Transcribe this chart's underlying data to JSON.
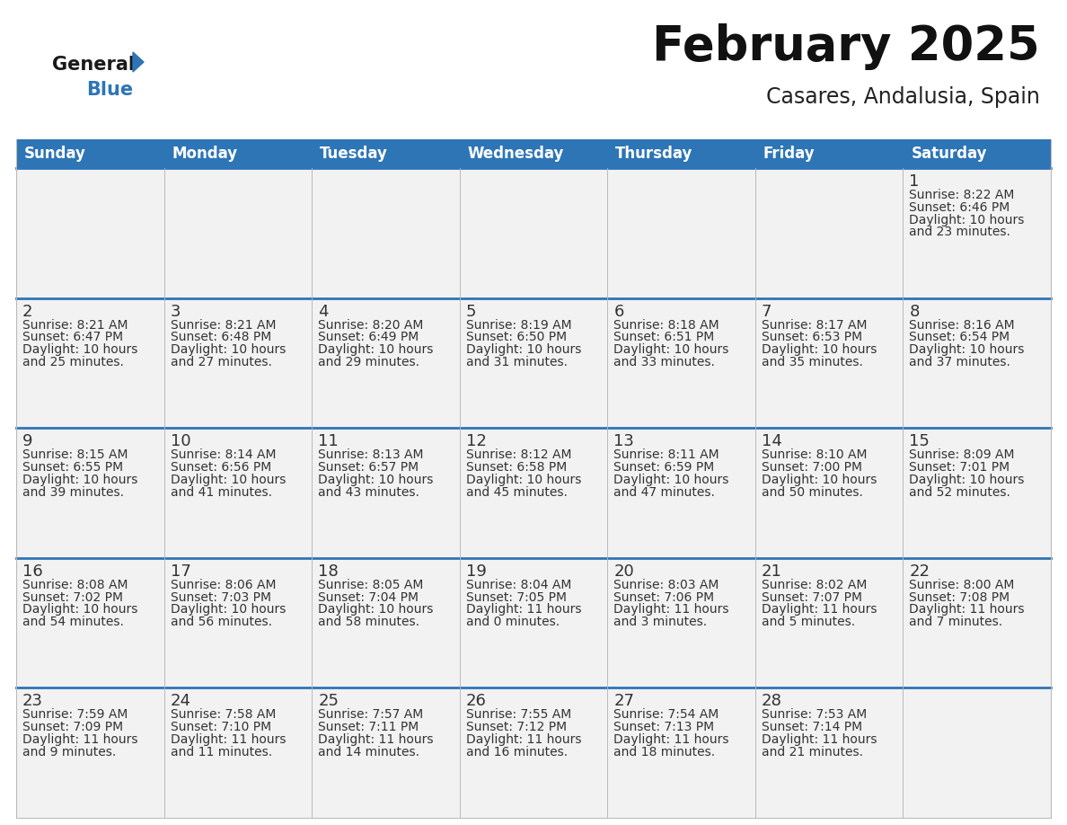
{
  "title": "February 2025",
  "subtitle": "Casares, Andalusia, Spain",
  "header_bg": "#2E75B6",
  "header_text_color": "#FFFFFF",
  "cell_bg_light": "#F2F2F2",
  "cell_bg_white": "#FFFFFF",
  "cell_border_color": "#BBBBBB",
  "day_number_color": "#333333",
  "cell_text_color": "#333333",
  "row_top_line_color": "#2E75B6",
  "days_of_week": [
    "Sunday",
    "Monday",
    "Tuesday",
    "Wednesday",
    "Thursday",
    "Friday",
    "Saturday"
  ],
  "logo_general_color": "#1A1A1A",
  "logo_blue_color": "#2E75B6",
  "calendar_data": [
    [
      null,
      null,
      null,
      null,
      null,
      null,
      {
        "day": 1,
        "sunrise": "8:22 AM",
        "sunset": "6:46 PM",
        "daylight": "10 hours and 23 minutes."
      }
    ],
    [
      {
        "day": 2,
        "sunrise": "8:21 AM",
        "sunset": "6:47 PM",
        "daylight": "10 hours and 25 minutes."
      },
      {
        "day": 3,
        "sunrise": "8:21 AM",
        "sunset": "6:48 PM",
        "daylight": "10 hours and 27 minutes."
      },
      {
        "day": 4,
        "sunrise": "8:20 AM",
        "sunset": "6:49 PM",
        "daylight": "10 hours and 29 minutes."
      },
      {
        "day": 5,
        "sunrise": "8:19 AM",
        "sunset": "6:50 PM",
        "daylight": "10 hours and 31 minutes."
      },
      {
        "day": 6,
        "sunrise": "8:18 AM",
        "sunset": "6:51 PM",
        "daylight": "10 hours and 33 minutes."
      },
      {
        "day": 7,
        "sunrise": "8:17 AM",
        "sunset": "6:53 PM",
        "daylight": "10 hours and 35 minutes."
      },
      {
        "day": 8,
        "sunrise": "8:16 AM",
        "sunset": "6:54 PM",
        "daylight": "10 hours and 37 minutes."
      }
    ],
    [
      {
        "day": 9,
        "sunrise": "8:15 AM",
        "sunset": "6:55 PM",
        "daylight": "10 hours and 39 minutes."
      },
      {
        "day": 10,
        "sunrise": "8:14 AM",
        "sunset": "6:56 PM",
        "daylight": "10 hours and 41 minutes."
      },
      {
        "day": 11,
        "sunrise": "8:13 AM",
        "sunset": "6:57 PM",
        "daylight": "10 hours and 43 minutes."
      },
      {
        "day": 12,
        "sunrise": "8:12 AM",
        "sunset": "6:58 PM",
        "daylight": "10 hours and 45 minutes."
      },
      {
        "day": 13,
        "sunrise": "8:11 AM",
        "sunset": "6:59 PM",
        "daylight": "10 hours and 47 minutes."
      },
      {
        "day": 14,
        "sunrise": "8:10 AM",
        "sunset": "7:00 PM",
        "daylight": "10 hours and 50 minutes."
      },
      {
        "day": 15,
        "sunrise": "8:09 AM",
        "sunset": "7:01 PM",
        "daylight": "10 hours and 52 minutes."
      }
    ],
    [
      {
        "day": 16,
        "sunrise": "8:08 AM",
        "sunset": "7:02 PM",
        "daylight": "10 hours and 54 minutes."
      },
      {
        "day": 17,
        "sunrise": "8:06 AM",
        "sunset": "7:03 PM",
        "daylight": "10 hours and 56 minutes."
      },
      {
        "day": 18,
        "sunrise": "8:05 AM",
        "sunset": "7:04 PM",
        "daylight": "10 hours and 58 minutes."
      },
      {
        "day": 19,
        "sunrise": "8:04 AM",
        "sunset": "7:05 PM",
        "daylight": "11 hours and 0 minutes."
      },
      {
        "day": 20,
        "sunrise": "8:03 AM",
        "sunset": "7:06 PM",
        "daylight": "11 hours and 3 minutes."
      },
      {
        "day": 21,
        "sunrise": "8:02 AM",
        "sunset": "7:07 PM",
        "daylight": "11 hours and 5 minutes."
      },
      {
        "day": 22,
        "sunrise": "8:00 AM",
        "sunset": "7:08 PM",
        "daylight": "11 hours and 7 minutes."
      }
    ],
    [
      {
        "day": 23,
        "sunrise": "7:59 AM",
        "sunset": "7:09 PM",
        "daylight": "11 hours and 9 minutes."
      },
      {
        "day": 24,
        "sunrise": "7:58 AM",
        "sunset": "7:10 PM",
        "daylight": "11 hours and 11 minutes."
      },
      {
        "day": 25,
        "sunrise": "7:57 AM",
        "sunset": "7:11 PM",
        "daylight": "11 hours and 14 minutes."
      },
      {
        "day": 26,
        "sunrise": "7:55 AM",
        "sunset": "7:12 PM",
        "daylight": "11 hours and 16 minutes."
      },
      {
        "day": 27,
        "sunrise": "7:54 AM",
        "sunset": "7:13 PM",
        "daylight": "11 hours and 18 minutes."
      },
      {
        "day": 28,
        "sunrise": "7:53 AM",
        "sunset": "7:14 PM",
        "daylight": "11 hours and 21 minutes."
      },
      null
    ]
  ]
}
